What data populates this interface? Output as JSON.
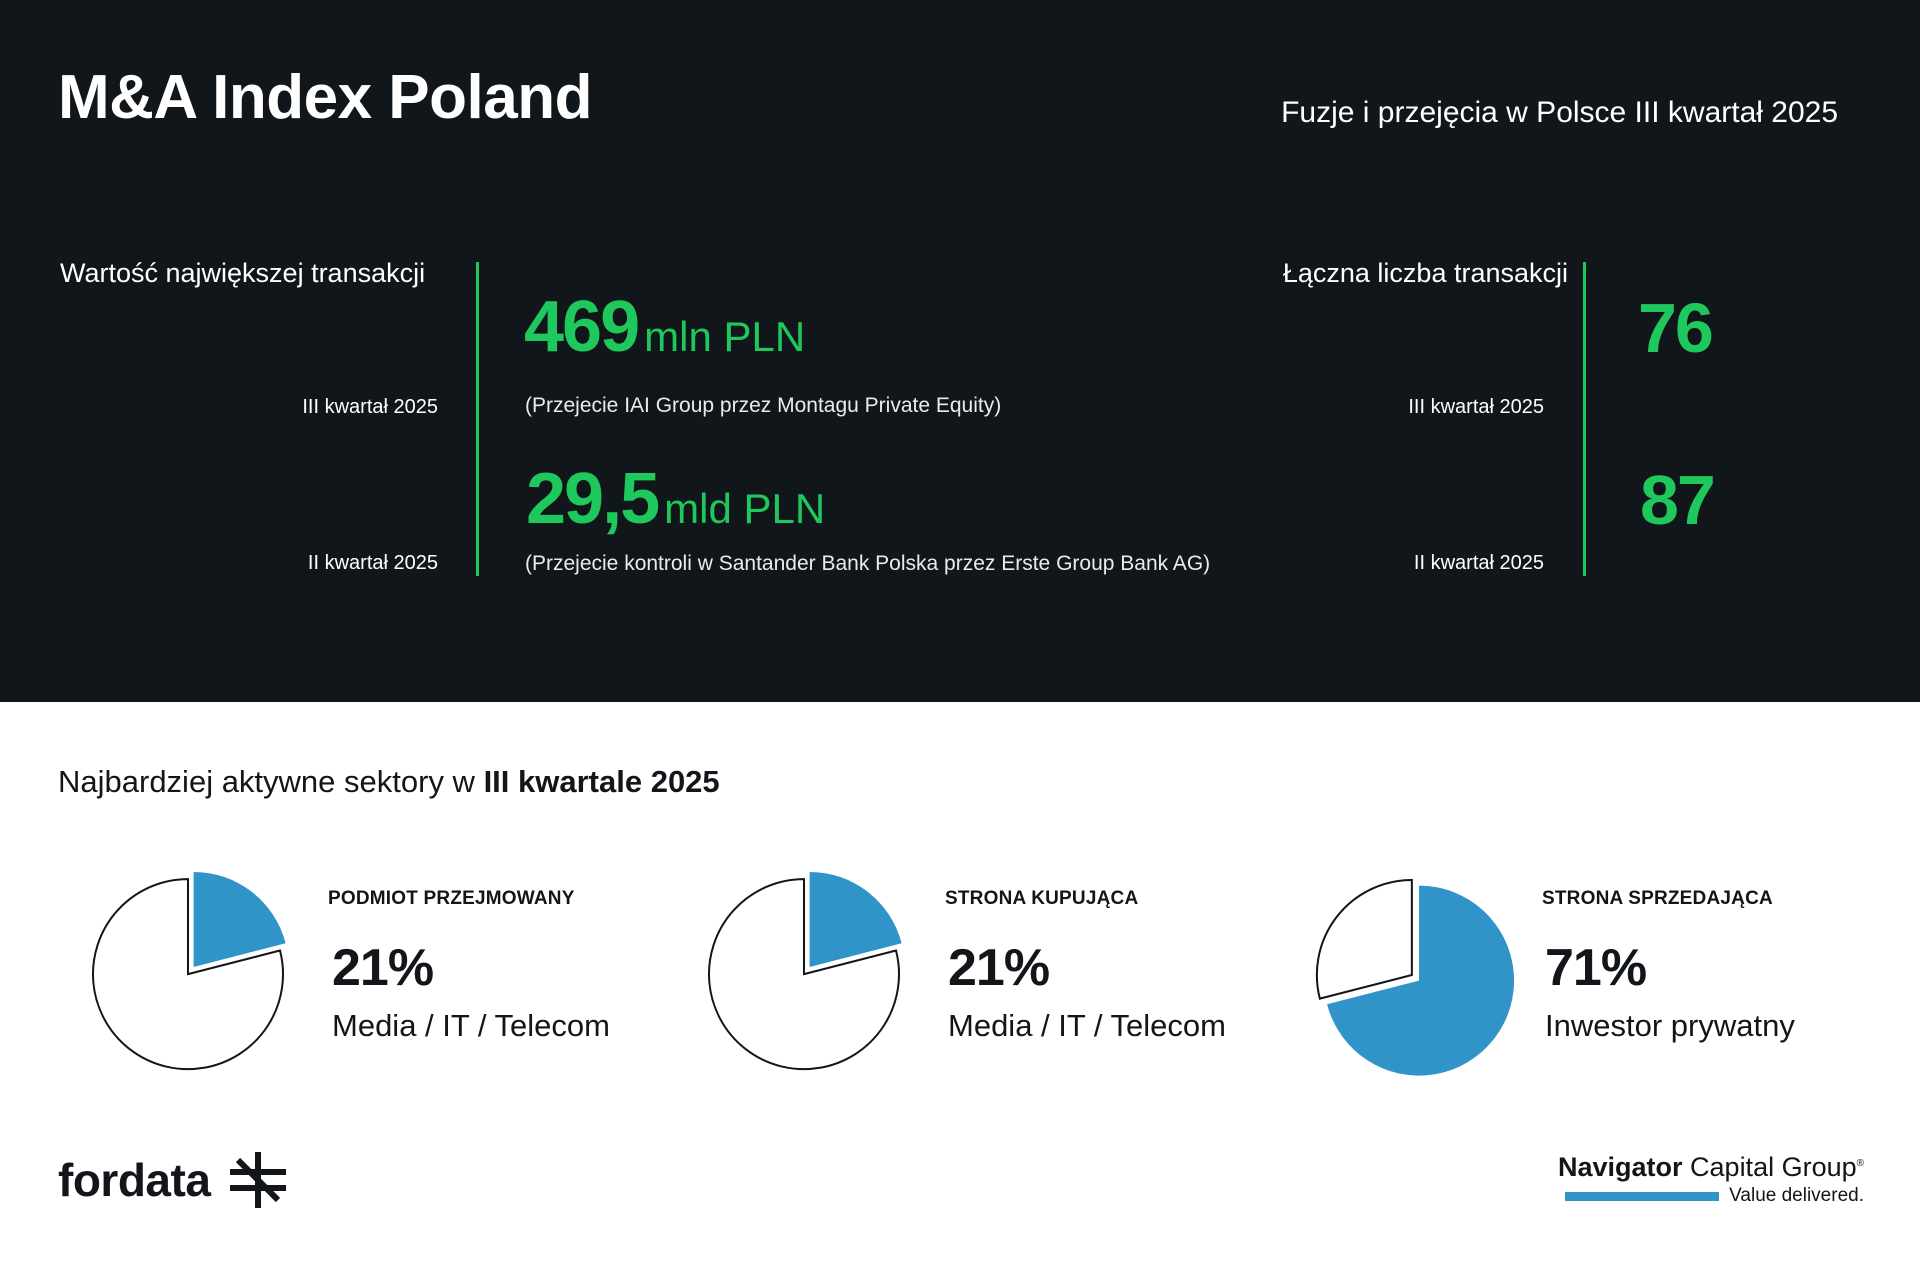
{
  "header": {
    "title": "M&A Index Poland",
    "subtitle": "Fuzje i przejęcia w Polsce III kwartał 2025"
  },
  "largest_deal": {
    "label": "Wartość największej transakcji",
    "q3": {
      "period": "III kwartał 2025",
      "value": "469",
      "unit": "mln PLN",
      "description": "(Przejecie IAI Group przez Montagu Private Equity)"
    },
    "q2": {
      "period": "II kwartał 2025",
      "value": "29,5",
      "unit": "mld PLN",
      "description": "(Przejecie kontroli w Santander Bank Polska przez Erste Group Bank AG)"
    }
  },
  "total_deals": {
    "label": "Łączna liczba transakcji",
    "q3": {
      "period": "III kwartał 2025",
      "value": "76"
    },
    "q2": {
      "period": "II kwartał 2025",
      "value": "87"
    }
  },
  "sectors": {
    "title_prefix": "Najbardziej aktywne sektory w ",
    "title_bold": "III kwartale 2025",
    "items": [
      {
        "category": "PODMIOT PRZEJMOWANY",
        "percent_label": "21%",
        "sector": "Media / IT / Telecom"
      },
      {
        "category": "STRONA KUPUJĄCA",
        "percent_label": "21%",
        "sector": "Media / IT / Telecom"
      },
      {
        "category": "STRONA SPRZEDAJĄCA",
        "percent_label": "71%",
        "sector": "Inwestor prywatny"
      }
    ]
  },
  "chart_data": [
    {
      "type": "pie",
      "slices": [
        {
          "value": 21,
          "color": "#3094c9"
        },
        {
          "value": 79,
          "color": "#ffffff"
        }
      ]
    },
    {
      "type": "pie",
      "slices": [
        {
          "value": 21,
          "color": "#3094c9"
        },
        {
          "value": 79,
          "color": "#ffffff"
        }
      ]
    },
    {
      "type": "pie",
      "slices": [
        {
          "value": 71,
          "color": "#3094c9"
        },
        {
          "value": 29,
          "color": "#ffffff"
        }
      ]
    }
  ],
  "footer": {
    "left_logo": "fordata",
    "right_logo_bold": "Navigator",
    "right_logo_rest": " Capital Group",
    "right_logo_reg": "®",
    "right_tagline": "Value delivered."
  },
  "colors": {
    "dark_bg": "#11161a",
    "accent_green": "#1ec85c",
    "accent_blue": "#3094c9"
  }
}
